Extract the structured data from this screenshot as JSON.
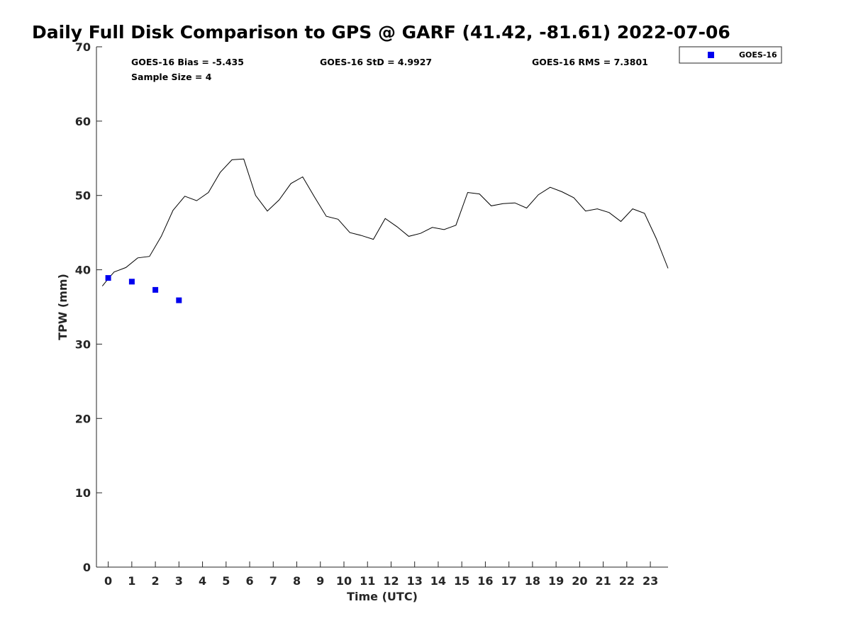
{
  "chart_data": {
    "type": "line",
    "title": "Daily Full Disk Comparison to GPS @ GARF (41.42, -81.61) 2022-07-06",
    "xlabel": "Time (UTC)",
    "ylabel": "TPW (mm)",
    "xlim": [
      -0.5,
      23.75
    ],
    "ylim": [
      0,
      70
    ],
    "x_ticks": [
      0,
      1,
      2,
      3,
      4,
      5,
      6,
      7,
      8,
      9,
      10,
      11,
      12,
      13,
      14,
      15,
      16,
      17,
      18,
      19,
      20,
      21,
      22,
      23
    ],
    "x_tick_labels": [
      "0",
      "1",
      "2",
      "3",
      "4",
      "5",
      "6",
      "7",
      "8",
      "9",
      "10",
      "11",
      "12",
      "13",
      "14",
      "15",
      "16",
      "17",
      "18",
      "19",
      "20",
      "21",
      "22",
      "23"
    ],
    "y_ticks": [
      0,
      10,
      20,
      30,
      40,
      50,
      60,
      70
    ],
    "y_tick_labels": [
      "0",
      "10",
      "20",
      "30",
      "40",
      "50",
      "60",
      "70"
    ],
    "grid": false,
    "legend_position": "top-right",
    "stats": {
      "bias": "GOES-16 Bias = -5.435",
      "std": "GOES-16 StD = 4.9927",
      "rms": "GOES-16 RMS = 7.3801",
      "sample": "Sample Size = 4"
    },
    "series": [
      {
        "style": "line",
        "color": "#000000",
        "x": [
          -0.25,
          0.0,
          0.25,
          0.75,
          1.25,
          1.75,
          2.25,
          2.75,
          3.25,
          3.75,
          4.25,
          4.75,
          5.25,
          5.75,
          6.25,
          6.75,
          7.25,
          7.75,
          8.25,
          8.75,
          9.25,
          9.75,
          10.25,
          10.75,
          11.25,
          11.75,
          12.25,
          12.75,
          13.25,
          13.75,
          14.25,
          14.75,
          15.25,
          15.75,
          16.25,
          16.75,
          17.25,
          17.75,
          18.25,
          18.75,
          19.25,
          19.75,
          20.25,
          20.75,
          21.25,
          21.75,
          22.25,
          22.75,
          23.25,
          23.75
        ],
        "values": [
          37.8,
          38.8,
          39.7,
          40.3,
          41.6,
          41.8,
          44.5,
          48.0,
          49.9,
          49.3,
          50.4,
          53.1,
          54.8,
          54.9,
          50.0,
          47.9,
          49.4,
          51.6,
          52.5,
          49.8,
          47.2,
          46.8,
          45.0,
          44.6,
          44.1,
          46.9,
          45.8,
          44.5,
          44.9,
          45.7,
          45.4,
          46.0,
          50.4,
          50.2,
          48.6,
          48.9,
          49.0,
          48.3,
          50.1,
          51.1,
          50.5,
          49.7,
          47.9,
          48.2,
          47.7,
          46.5,
          48.2,
          47.6,
          44.2,
          40.2
        ]
      },
      {
        "name": "GOES-16",
        "style": "marker",
        "marker": "square",
        "color": "#0000ee",
        "x": [
          0.0,
          1.0,
          2.0,
          3.0
        ],
        "values": [
          38.9,
          38.4,
          37.3,
          35.9
        ]
      }
    ]
  }
}
